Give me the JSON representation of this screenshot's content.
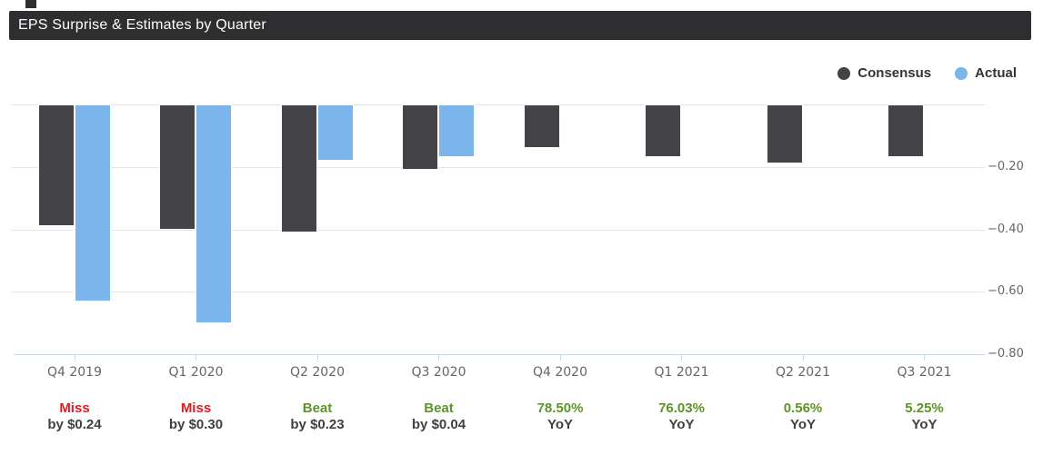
{
  "window": {
    "title": "EPS Surprise & Estimates by Quarter"
  },
  "legend": {
    "items": [
      {
        "label": "Consensus",
        "color": "#434348"
      },
      {
        "label": "Actual",
        "color": "#7cb5ec"
      }
    ]
  },
  "colors": {
    "title_bar_bg": "#2e2e30",
    "title_text": "#ffffff",
    "grid": "#e6e6e6",
    "axis_line": "#ccd6eb",
    "axis_label": "#666666",
    "consensus": "#434348",
    "actual": "#7cb5ec",
    "miss": "#e01a22",
    "beat": "#5d9428",
    "annotation_secondary": "#404040"
  },
  "chart_data": {
    "type": "bar",
    "title": "EPS Surprise & Estimates by Quarter",
    "categories": [
      "Q4 2019",
      "Q1 2020",
      "Q2 2020",
      "Q3 2020",
      "Q4 2020",
      "Q1 2021",
      "Q2 2021",
      "Q3 2021"
    ],
    "series": [
      {
        "name": "Consensus",
        "color": "#434348",
        "values": [
          -0.39,
          -0.4,
          -0.41,
          -0.21,
          -0.14,
          -0.17,
          -0.19,
          -0.17
        ]
      },
      {
        "name": "Actual",
        "color": "#7cb5ec",
        "values": [
          -0.63,
          -0.7,
          -0.18,
          -0.17,
          null,
          null,
          null,
          null
        ]
      }
    ],
    "ylim": [
      -0.8,
      0.0
    ],
    "ytick_labels": [
      "−0.20",
      "−0.40",
      "−0.60",
      "−0.80"
    ],
    "grid": true,
    "legend_position": "top-right",
    "annotations": [
      {
        "line1": "Miss",
        "line2": "by $0.24",
        "kind": "miss"
      },
      {
        "line1": "Miss",
        "line2": "by $0.30",
        "kind": "miss"
      },
      {
        "line1": "Beat",
        "line2": "by $0.23",
        "kind": "beat"
      },
      {
        "line1": "Beat",
        "line2": "by $0.04",
        "kind": "beat"
      },
      {
        "line1": "78.50%",
        "line2": "YoY",
        "kind": "yoy"
      },
      {
        "line1": "76.03%",
        "line2": "YoY",
        "kind": "yoy"
      },
      {
        "line1": "0.56%",
        "line2": "YoY",
        "kind": "yoy"
      },
      {
        "line1": "5.25%",
        "line2": "YoY",
        "kind": "yoy"
      }
    ]
  }
}
